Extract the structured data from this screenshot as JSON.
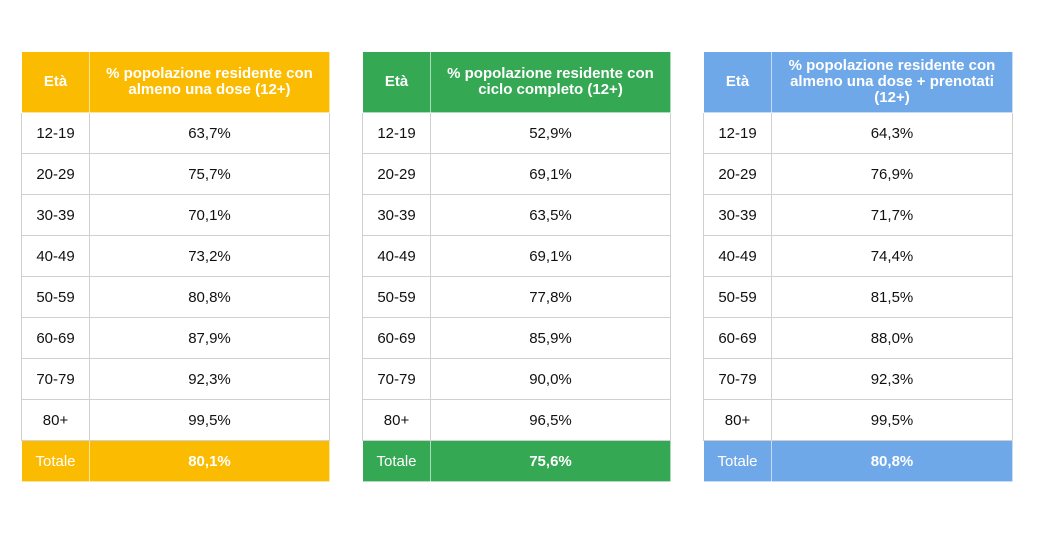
{
  "tables": [
    {
      "header_age": "Età",
      "header_value": "% popolazione residente con almeno una dose (12+)",
      "accent": "#fbbb00",
      "rows": [
        {
          "age": "12-19",
          "value": "63,7%"
        },
        {
          "age": "20-29",
          "value": "75,7%"
        },
        {
          "age": "30-39",
          "value": "70,1%"
        },
        {
          "age": "40-49",
          "value": "73,2%"
        },
        {
          "age": "50-59",
          "value": "80,8%"
        },
        {
          "age": "60-69",
          "value": "87,9%"
        },
        {
          "age": "70-79",
          "value": "92,3%"
        },
        {
          "age": "80+",
          "value": "99,5%"
        }
      ],
      "total_label": "Totale",
      "total_value": "80,1%"
    },
    {
      "header_age": "Età",
      "header_value": "% popolazione residente con ciclo completo (12+)",
      "accent": "#34a853",
      "rows": [
        {
          "age": "12-19",
          "value": "52,9%"
        },
        {
          "age": "20-29",
          "value": "69,1%"
        },
        {
          "age": "30-39",
          "value": "63,5%"
        },
        {
          "age": "40-49",
          "value": "69,1%"
        },
        {
          "age": "50-59",
          "value": "77,8%"
        },
        {
          "age": "60-69",
          "value": "85,9%"
        },
        {
          "age": "70-79",
          "value": "90,0%"
        },
        {
          "age": "80+",
          "value": "96,5%"
        }
      ],
      "total_label": "Totale",
      "total_value": "75,6%"
    },
    {
      "header_age": "Età",
      "header_value": "% popolazione residente con almeno una dose + prenotati (12+)",
      "accent": "#6fa8e8",
      "rows": [
        {
          "age": "12-19",
          "value": "64,3%"
        },
        {
          "age": "20-29",
          "value": "76,9%"
        },
        {
          "age": "30-39",
          "value": "71,7%"
        },
        {
          "age": "40-49",
          "value": "74,4%"
        },
        {
          "age": "50-59",
          "value": "81,5%"
        },
        {
          "age": "60-69",
          "value": "88,0%"
        },
        {
          "age": "70-79",
          "value": "92,3%"
        },
        {
          "age": "80+",
          "value": "99,5%"
        }
      ],
      "total_label": "Totale",
      "total_value": "80,8%"
    }
  ]
}
